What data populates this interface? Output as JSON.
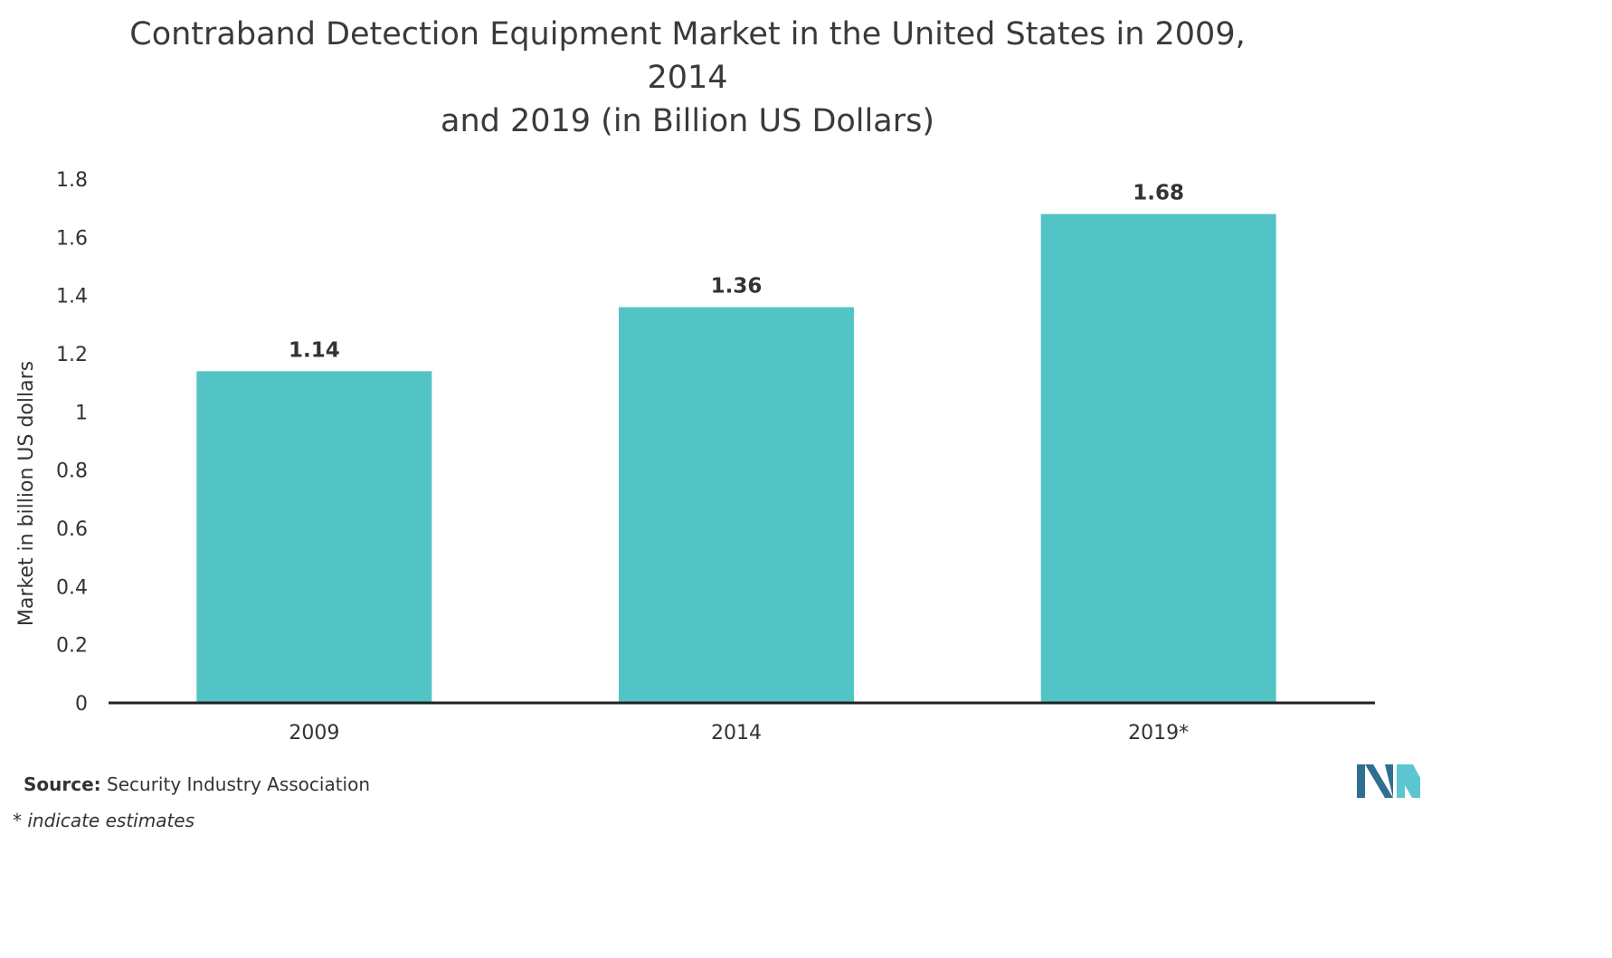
{
  "chart_data": {
    "type": "bar",
    "title_line1": "Contraband Detection Equipment Market in the United States in 2009, 2014",
    "title_line2": "and 2019 (in Billion US Dollars)",
    "categories": [
      "2009",
      "2014",
      "2019*"
    ],
    "values": [
      1.14,
      1.36,
      1.68
    ],
    "value_labels": [
      "1.14",
      "1.36",
      "1.68"
    ],
    "ylabel": "Market in billion US dollars",
    "xlabel": "",
    "ylim": [
      0,
      1.8
    ],
    "yticks": [
      0,
      0.2,
      0.4,
      0.6,
      0.8,
      1,
      1.2,
      1.4,
      1.6,
      1.8
    ],
    "ytick_labels": [
      "0",
      "0.2",
      "0.4",
      "0.6",
      "0.8",
      "1",
      "1.2",
      "1.4",
      "1.6",
      "1.8"
    ],
    "grid": false,
    "bar_color": "#53c4c6",
    "axis_color": "#222222"
  },
  "footer": {
    "source_label": "Source:",
    "source_text": " Security Industry Association",
    "note": "* indicate estimates"
  },
  "logo": {
    "icon": "mordor-intelligence-logo-icon",
    "color_dark": "#2f6f8f",
    "color_light": "#5cc6d0"
  }
}
